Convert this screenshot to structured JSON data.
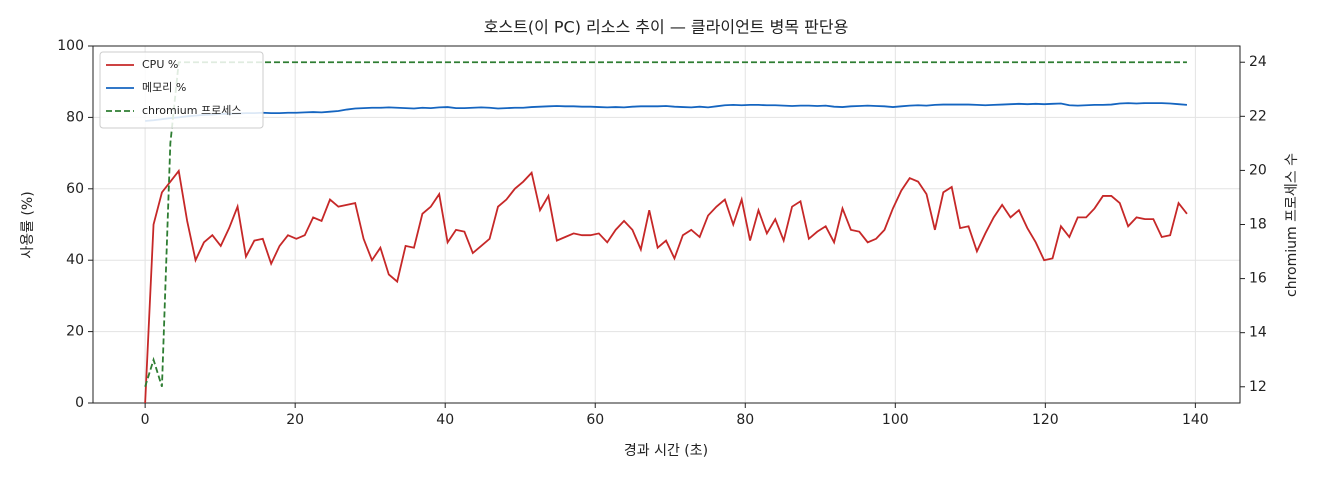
{
  "chart_data": {
    "type": "line",
    "title": "호스트(이 PC) 리소스 추이 — 클라이언트 병목 판단용",
    "x_label": "경과 시간 (초)",
    "y_label": "사용률 (%)",
    "y2_label": "chromium 프로세스 수",
    "x": [
      0,
      1.12,
      2.24,
      3.36,
      4.48,
      5.6,
      6.72,
      7.84,
      8.96,
      10.08,
      11.2,
      12.32,
      13.44,
      14.56,
      15.68,
      16.8,
      17.92,
      19.04,
      20.16,
      21.28,
      22.4,
      23.52,
      24.64,
      25.76,
      26.88,
      28,
      29.12,
      30.24,
      31.36,
      32.48,
      33.6,
      34.72,
      35.84,
      36.96,
      38.08,
      39.2,
      40.32,
      41.44,
      42.56,
      43.68,
      44.8,
      45.92,
      47.04,
      48.16,
      49.28,
      50.4,
      51.52,
      52.64,
      53.76,
      54.88,
      56,
      57.12,
      58.24,
      59.36,
      60.48,
      61.6,
      62.72,
      63.84,
      64.96,
      66.08,
      67.2,
      68.32,
      69.44,
      70.56,
      71.68,
      72.8,
      73.92,
      75.04,
      76.16,
      77.28,
      78.4,
      79.52,
      80.64,
      81.76,
      82.88,
      84,
      85.12,
      86.24,
      87.36,
      88.48,
      89.6,
      90.72,
      91.84,
      92.96,
      94.08,
      95.2,
      96.32,
      97.44,
      98.56,
      99.68,
      100.8,
      101.92,
      103.04,
      104.16,
      105.28,
      106.4,
      107.52,
      108.64,
      109.76,
      110.88,
      112,
      113.12,
      114.24,
      115.36,
      116.48,
      117.6,
      118.72,
      119.84,
      120.96,
      122.08,
      123.2,
      124.32,
      125.44,
      126.56,
      127.68,
      128.8,
      129.92,
      131.04,
      132.16,
      133.28,
      134.4,
      135.52,
      136.64,
      137.76,
      138.88
    ],
    "series": [
      {
        "name": "CPU %",
        "color": "#c62828",
        "values": [
          0,
          50,
          59,
          62,
          65,
          51,
          40,
          45,
          47,
          44,
          49,
          55,
          41,
          45.5,
          46,
          39,
          44,
          47,
          46,
          47,
          52,
          51,
          57,
          55,
          55.5,
          56,
          46,
          40,
          43.5,
          36,
          34,
          44,
          43.5,
          53,
          55,
          58.5,
          45,
          48.5,
          48,
          42,
          44,
          46,
          55,
          57,
          60,
          62,
          64.5,
          54,
          58,
          45.5,
          46.5,
          47.5,
          47,
          47,
          47.5,
          45,
          48.5,
          51,
          48.5,
          43,
          54,
          43.5,
          45.5,
          40.5,
          47,
          48.5,
          46.5,
          52.5,
          55,
          57,
          50,
          57,
          45.5,
          54,
          47.5,
          51.5,
          45.5,
          55,
          56.5,
          46,
          48,
          49.5,
          45,
          54.5,
          48.5,
          48,
          45,
          46,
          48.5,
          54.5,
          59.5,
          63,
          62,
          58.5,
          48.5,
          59,
          60.5,
          49,
          49.5,
          42.5,
          47.5,
          52,
          55.5,
          52,
          54,
          49,
          45,
          40,
          40.5,
          49.5,
          46.5,
          52,
          52,
          54.5,
          58,
          58,
          56,
          49.5,
          52,
          51.5,
          51.5,
          46.5,
          47,
          56,
          53
        ]
      },
      {
        "name": "메모리 %",
        "color": "#1565c0",
        "values": [
          79,
          79.2,
          79.5,
          79.8,
          80,
          80.3,
          80.5,
          80.7,
          80.8,
          81,
          81,
          81.1,
          81.2,
          81.2,
          81.3,
          81.2,
          81.2,
          81.3,
          81.3,
          81.4,
          81.5,
          81.4,
          81.6,
          81.8,
          82.2,
          82.5,
          82.6,
          82.7,
          82.7,
          82.8,
          82.7,
          82.6,
          82.5,
          82.7,
          82.6,
          82.8,
          82.9,
          82.6,
          82.6,
          82.7,
          82.8,
          82.7,
          82.5,
          82.6,
          82.7,
          82.7,
          82.9,
          83,
          83.1,
          83.2,
          83.1,
          83.1,
          83,
          83,
          82.9,
          82.8,
          82.9,
          82.8,
          83,
          83.1,
          83.1,
          83.1,
          83.2,
          83,
          82.9,
          82.8,
          83,
          82.8,
          83.1,
          83.4,
          83.5,
          83.4,
          83.5,
          83.5,
          83.4,
          83.4,
          83.3,
          83.2,
          83.3,
          83.3,
          83.2,
          83.3,
          83,
          82.9,
          83.1,
          83.2,
          83.3,
          83.2,
          83.1,
          82.9,
          83.1,
          83.3,
          83.4,
          83.3,
          83.5,
          83.6,
          83.6,
          83.6,
          83.6,
          83.5,
          83.4,
          83.5,
          83.6,
          83.7,
          83.8,
          83.7,
          83.8,
          83.7,
          83.8,
          83.9,
          83.4,
          83.3,
          83.4,
          83.5,
          83.5,
          83.6,
          83.9,
          84,
          83.9,
          84,
          84,
          84,
          83.9,
          83.7,
          83.5
        ]
      },
      {
        "name": "chromium 프로세스",
        "color": "#2e7d32",
        "axis": "y2",
        "dashed": true,
        "values": [
          12,
          13,
          12,
          21,
          24,
          24,
          24,
          24,
          24,
          24,
          24,
          24,
          24,
          24,
          24,
          24,
          24,
          24,
          24,
          24,
          24,
          24,
          24,
          24,
          24,
          24,
          24,
          24,
          24,
          24,
          24,
          24,
          24,
          24,
          24,
          24,
          24,
          24,
          24,
          24,
          24,
          24,
          24,
          24,
          24,
          24,
          24,
          24,
          24,
          24,
          24,
          24,
          24,
          24,
          24,
          24,
          24,
          24,
          24,
          24,
          24,
          24,
          24,
          24,
          24,
          24,
          24,
          24,
          24,
          24,
          24,
          24,
          24,
          24,
          24,
          24,
          24,
          24,
          24,
          24,
          24,
          24,
          24,
          24,
          24,
          24,
          24,
          24,
          24,
          24,
          24,
          24,
          24,
          24,
          24,
          24,
          24,
          24,
          24,
          24,
          24,
          24,
          24,
          24,
          24,
          24,
          24,
          24,
          24,
          24,
          24,
          24,
          24,
          24,
          24,
          24,
          24,
          24,
          24,
          24,
          24,
          24,
          24,
          24,
          24
        ]
      }
    ],
    "xlim": [
      -6.95,
      145.95
    ],
    "xticks": [
      0,
      20,
      40,
      60,
      80,
      100,
      120,
      140
    ],
    "ylim": [
      0,
      100
    ],
    "yticks": [
      0,
      20,
      40,
      60,
      80,
      100
    ],
    "y2lim": [
      11.4,
      24.6
    ],
    "y2ticks": [
      12,
      14,
      16,
      18,
      20,
      22,
      24
    ],
    "grid": true,
    "legend": "upper-left"
  }
}
